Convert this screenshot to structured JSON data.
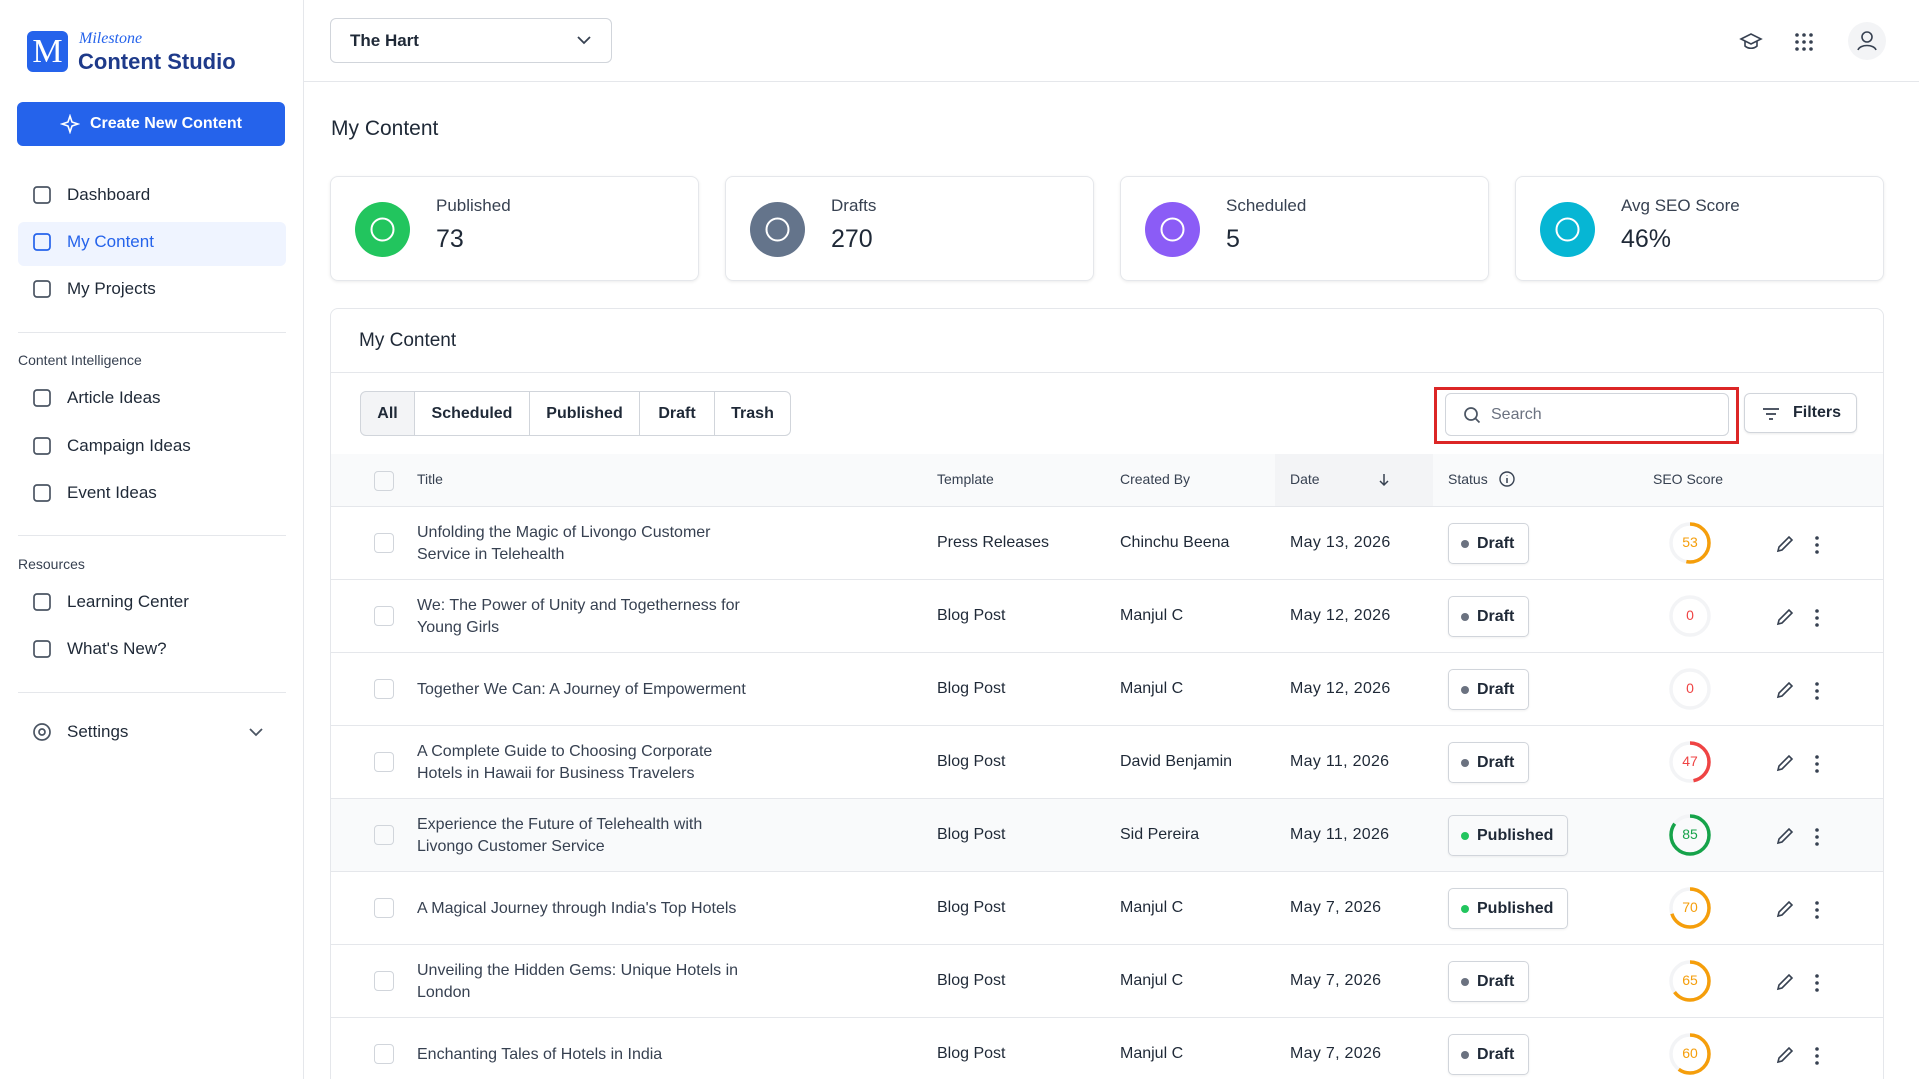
{
  "brand": {
    "small": "Milestone",
    "name": "Content Studio"
  },
  "sidebar": {
    "create": "Create New Content",
    "nav": [
      "Dashboard",
      "My Content",
      "My Projects"
    ],
    "sections": [
      {
        "title": "Content Intelligence",
        "items": [
          "Article Ideas",
          "Campaign Ideas",
          "Event Ideas"
        ]
      },
      {
        "title": "Resources",
        "items": [
          "Learning Center",
          "What's New?"
        ]
      }
    ],
    "settings": "Settings"
  },
  "header": {
    "property": "The Hart"
  },
  "page_title": "My Content",
  "stats": [
    {
      "label": "Published",
      "value": 73,
      "color": "#22c55e"
    },
    {
      "label": "Drafts",
      "value": 270,
      "color": "#64748b"
    },
    {
      "label": "Scheduled",
      "value": 5,
      "color": "#8b5cf6"
    },
    {
      "label": "Avg SEO Score",
      "value": "46%",
      "color": "#06b6d4"
    }
  ],
  "table": {
    "title": "My Content",
    "tabs": [
      "All",
      "Scheduled",
      "Published",
      "Draft",
      "Trash"
    ],
    "search": "Search",
    "filters": "Filters",
    "columns": [
      "Title",
      "Template",
      "Created By",
      "Date",
      "Status",
      "SEO Score"
    ],
    "rows": [
      {
        "title": "Unfolding the Magic of Livongo Customer Service in Telehealth",
        "template": "Press Releases",
        "created_by": "Chinchu Beena",
        "date": "May 13, 2026",
        "status": "Draft",
        "seo": 53,
        "seo_color": "#f59e0b"
      },
      {
        "title": "We: The Power of Unity and Togetherness for Young Girls",
        "template": "Blog Post",
        "created_by": "Manjul C",
        "date": "May 12, 2026",
        "status": "Draft",
        "seo": 0,
        "seo_color": "#ef4444"
      },
      {
        "title": "Together We Can: A Journey of Empowerment",
        "template": "Blog Post",
        "created_by": "Manjul C",
        "date": "May 12, 2026",
        "status": "Draft",
        "seo": 0,
        "seo_color": "#ef4444"
      },
      {
        "title": "A Complete Guide to Choosing Corporate Hotels in Hawaii for Business Travelers",
        "template": "Blog Post",
        "created_by": "David Benjamin",
        "date": "May 11, 2026",
        "status": "Draft",
        "seo": 47,
        "seo_color": "#ef4444"
      },
      {
        "title": "Experience the Future of Telehealth with Livongo Customer Service",
        "template": "Blog Post",
        "created_by": "Sid Pereira",
        "date": "May 11, 2026",
        "status": "Published",
        "seo": 85,
        "seo_color": "#16a34a"
      },
      {
        "title": "A Magical Journey through India's Top Hotels",
        "template": "Blog Post",
        "created_by": "Manjul C",
        "date": "May 7, 2026",
        "status": "Published",
        "seo": 70,
        "seo_color": "#f59e0b"
      },
      {
        "title": "Unveiling the Hidden Gems: Unique Hotels in London",
        "template": "Blog Post",
        "created_by": "Manjul C",
        "date": "May 7, 2026",
        "status": "Draft",
        "seo": 65,
        "seo_color": "#f59e0b"
      },
      {
        "title": "Enchanting Tales of Hotels in India",
        "template": "Blog Post",
        "created_by": "Manjul C",
        "date": "May 7, 2026",
        "status": "Draft",
        "seo": 60,
        "seo_color": "#f59e0b"
      }
    ]
  }
}
